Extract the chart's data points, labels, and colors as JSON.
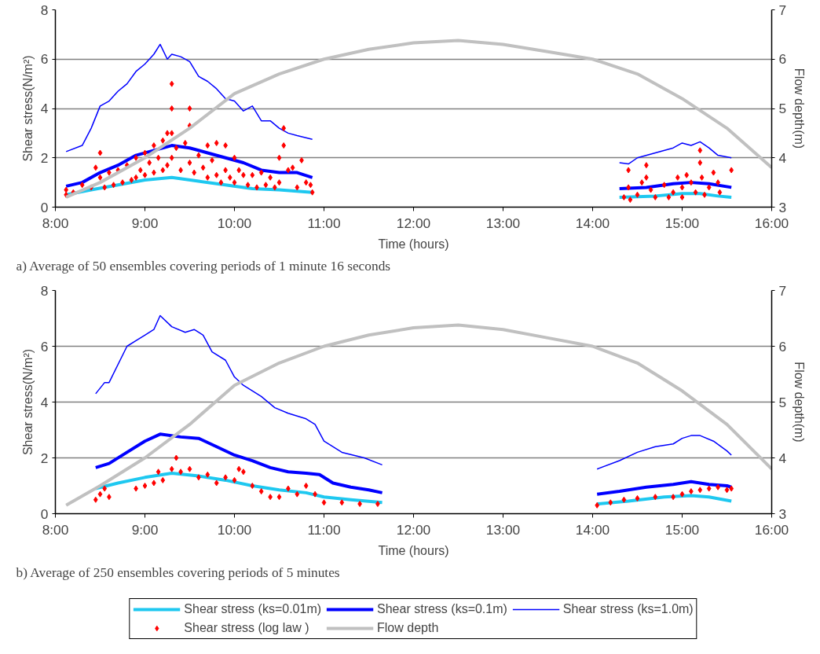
{
  "chart_data": [
    {
      "type": "line",
      "xlabel": "Time (hours)",
      "ylabel": "Shear stress(N/m²)",
      "y2label": "Flow depth(m)",
      "annotations": [
        "a) Average of 50 ensembles covering periods of 1 minute 16 seconds"
      ],
      "xlim": [
        8,
        16
      ],
      "xticks": [
        {
          "value": 8,
          "label": "8:00"
        },
        {
          "value": 9,
          "label": "9:00"
        },
        {
          "value": 10,
          "label": "10:00"
        },
        {
          "value": 11,
          "label": "11:00"
        },
        {
          "value": 12,
          "label": "12:00"
        },
        {
          "value": 13,
          "label": "13:00"
        },
        {
          "value": 14,
          "label": "14:00"
        },
        {
          "value": 15,
          "label": "15:00"
        },
        {
          "value": 16,
          "label": "16:00"
        }
      ],
      "ylim": [
        0,
        8
      ],
      "yticks": [
        0,
        2,
        4,
        6,
        8
      ],
      "y2lim": [
        3,
        7
      ],
      "y2ticks": [
        3,
        4,
        5,
        6,
        7
      ],
      "grid": "y",
      "series": [
        {
          "color": "#1ec8f0",
          "x": [
            8.12,
            8.4,
            8.7,
            9.0,
            9.3,
            9.6,
            9.9,
            10.2,
            10.5,
            10.87,
            12.5,
            14.3,
            14.7,
            15.0,
            15.2,
            15.4,
            15.55
          ],
          "values": [
            0.5,
            0.7,
            0.9,
            1.1,
            1.2,
            1.05,
            0.9,
            0.75,
            0.7,
            0.6,
            null,
            0.4,
            0.45,
            0.55,
            0.55,
            0.45,
            0.4
          ]
        },
        {
          "color": "#0000ff",
          "x": [
            8.12,
            8.3,
            8.5,
            8.7,
            8.9,
            9.1,
            9.3,
            9.5,
            9.7,
            9.9,
            10.1,
            10.3,
            10.5,
            10.7,
            10.87,
            12.5,
            14.3,
            14.6,
            14.9,
            15.1,
            15.3,
            15.55
          ],
          "values": [
            0.85,
            1.0,
            1.4,
            1.7,
            2.1,
            2.3,
            2.5,
            2.4,
            2.2,
            2.0,
            1.8,
            1.5,
            1.4,
            1.4,
            1.2,
            null,
            0.75,
            0.8,
            0.95,
            1.0,
            0.95,
            0.8
          ]
        },
        {
          "color": "#0000ff",
          "x": [
            8.12,
            8.3,
            8.4,
            8.5,
            8.6,
            8.7,
            8.8,
            8.9,
            9.0,
            9.1,
            9.17,
            9.25,
            9.3,
            9.4,
            9.5,
            9.6,
            9.7,
            9.8,
            9.9,
            10.0,
            10.1,
            10.2,
            10.3,
            10.4,
            10.5,
            10.6,
            10.7,
            10.87,
            12.5,
            14.3,
            14.4,
            14.5,
            14.7,
            14.9,
            15.0,
            15.1,
            15.2,
            15.3,
            15.4,
            15.55
          ],
          "values": [
            2.25,
            2.5,
            3.2,
            4.1,
            4.3,
            4.7,
            5.0,
            5.5,
            5.8,
            6.2,
            6.6,
            6.0,
            6.2,
            6.1,
            5.9,
            5.3,
            5.1,
            4.8,
            4.4,
            4.3,
            3.9,
            4.1,
            3.5,
            3.5,
            3.2,
            3.0,
            2.9,
            2.75,
            null,
            1.8,
            1.75,
            2.0,
            2.2,
            2.4,
            2.6,
            2.5,
            2.65,
            2.4,
            2.1,
            2.0
          ]
        },
        {
          "type": "scatter",
          "marker": "diamond",
          "color": "#ff0000",
          "x": [
            8.12,
            8.12,
            8.2,
            8.3,
            8.4,
            8.45,
            8.5,
            8.5,
            8.55,
            8.6,
            8.65,
            8.7,
            8.75,
            8.8,
            8.85,
            8.9,
            8.9,
            8.95,
            9.0,
            9.0,
            9.05,
            9.1,
            9.1,
            9.15,
            9.2,
            9.2,
            9.25,
            9.25,
            9.3,
            9.3,
            9.3,
            9.3,
            9.35,
            9.4,
            9.45,
            9.5,
            9.5,
            9.5,
            9.55,
            9.6,
            9.65,
            9.7,
            9.7,
            9.75,
            9.8,
            9.8,
            9.85,
            9.9,
            9.9,
            9.95,
            10.0,
            10.0,
            10.05,
            10.1,
            10.15,
            10.2,
            10.25,
            10.3,
            10.35,
            10.4,
            10.45,
            10.5,
            10.5,
            10.55,
            10.55,
            10.6,
            10.65,
            10.7,
            10.75,
            10.8,
            10.85,
            10.87,
            14.35,
            14.4,
            14.4,
            14.42,
            14.5,
            14.55,
            14.6,
            14.6,
            14.65,
            14.7,
            14.8,
            14.85,
            14.9,
            14.95,
            15.0,
            15.0,
            15.05,
            15.1,
            15.15,
            15.2,
            15.2,
            15.22,
            15.25,
            15.3,
            15.35,
            15.4,
            15.42,
            15.55
          ],
          "values": [
            0.5,
            0.7,
            0.6,
            0.9,
            0.8,
            1.6,
            2.2,
            1.2,
            0.8,
            1.4,
            0.9,
            1.5,
            1.0,
            1.7,
            1.1,
            2.0,
            1.2,
            1.5,
            2.2,
            1.3,
            1.8,
            2.5,
            1.4,
            2.0,
            2.7,
            1.5,
            3.0,
            1.7,
            5.0,
            4.0,
            3.0,
            2.0,
            2.4,
            1.5,
            2.6,
            1.8,
            4.0,
            3.3,
            1.4,
            2.1,
            1.6,
            2.5,
            1.2,
            1.9,
            2.6,
            1.3,
            1.0,
            2.5,
            1.5,
            1.2,
            2.0,
            1.0,
            1.5,
            1.3,
            0.9,
            1.3,
            0.8,
            1.4,
            0.9,
            1.2,
            0.8,
            2.0,
            1.0,
            2.5,
            3.2,
            1.5,
            1.6,
            0.8,
            1.9,
            1.0,
            0.9,
            0.6,
            0.4,
            1.5,
            0.8,
            0.3,
            0.5,
            1.0,
            1.7,
            1.2,
            0.7,
            0.4,
            0.9,
            0.4,
            0.6,
            1.2,
            0.8,
            0.4,
            1.3,
            1.0,
            0.6,
            2.3,
            1.8,
            1.2,
            0.5,
            0.8,
            1.4,
            1.0,
            0.6,
            1.5
          ]
        },
        {
          "axis": "y2",
          "color": "#c0c0c0",
          "x": [
            8.12,
            8.5,
            9.0,
            9.5,
            10.0,
            10.5,
            11.0,
            11.5,
            12.0,
            12.5,
            13.0,
            13.5,
            14.0,
            14.5,
            15.0,
            15.5,
            16.0
          ],
          "values": [
            3.2,
            3.5,
            4.0,
            4.6,
            5.3,
            5.7,
            6.0,
            6.2,
            6.33,
            6.38,
            6.3,
            6.15,
            6.0,
            5.7,
            5.2,
            4.6,
            3.8
          ]
        }
      ]
    },
    {
      "type": "line",
      "xlabel": "Time (hours)",
      "ylabel": "Shear stress(N/m²)",
      "y2label": "Flow depth(m)",
      "annotations": [
        "b) Average of 250 ensembles covering periods of 5 minutes"
      ],
      "xlim": [
        8,
        16
      ],
      "xticks": [
        {
          "value": 8,
          "label": "8:00"
        },
        {
          "value": 9,
          "label": "9:00"
        },
        {
          "value": 10,
          "label": "10:00"
        },
        {
          "value": 11,
          "label": "11:00"
        },
        {
          "value": 12,
          "label": "12:00"
        },
        {
          "value": 13,
          "label": "13:00"
        },
        {
          "value": 14,
          "label": "14:00"
        },
        {
          "value": 15,
          "label": "15:00"
        },
        {
          "value": 16,
          "label": "16:00"
        }
      ],
      "ylim": [
        0,
        8
      ],
      "yticks": [
        0,
        2,
        4,
        6,
        8
      ],
      "y2lim": [
        3,
        7
      ],
      "y2ticks": [
        3,
        4,
        5,
        6,
        7
      ],
      "grid": "y",
      "legend": "bottom",
      "series": [
        {
          "name": "Shear stress (ks=0.01m)",
          "color": "#1ec8f0",
          "x": [
            8.45,
            8.7,
            9.0,
            9.3,
            9.6,
            9.9,
            10.2,
            10.5,
            10.8,
            11.0,
            11.3,
            11.65,
            12.5,
            14.05,
            14.4,
            14.8,
            15.1,
            15.3,
            15.55
          ],
          "values": [
            0.9,
            1.1,
            1.3,
            1.45,
            1.35,
            1.2,
            1.0,
            0.85,
            0.75,
            0.6,
            0.5,
            0.4,
            null,
            0.35,
            0.45,
            0.6,
            0.65,
            0.6,
            0.45
          ]
        },
        {
          "name": "Shear stress (ks=0.1m)",
          "color": "#0000ff",
          "x": [
            8.45,
            8.6,
            8.8,
            9.0,
            9.17,
            9.4,
            9.6,
            9.8,
            10.0,
            10.2,
            10.4,
            10.6,
            10.8,
            10.95,
            11.1,
            11.3,
            11.5,
            11.65,
            12.5,
            14.05,
            14.3,
            14.6,
            14.9,
            15.1,
            15.3,
            15.5,
            15.55
          ],
          "values": [
            1.65,
            1.8,
            2.2,
            2.6,
            2.85,
            2.75,
            2.7,
            2.4,
            2.1,
            1.9,
            1.65,
            1.5,
            1.45,
            1.4,
            1.1,
            0.95,
            0.85,
            0.75,
            null,
            0.7,
            0.8,
            0.95,
            1.05,
            1.15,
            1.05,
            1.0,
            0.95
          ]
        },
        {
          "name": "Shear stress (ks=1.0m)",
          "color": "#0000ff",
          "x": [
            8.45,
            8.55,
            8.6,
            8.8,
            8.9,
            9.0,
            9.1,
            9.17,
            9.3,
            9.45,
            9.55,
            9.65,
            9.75,
            9.9,
            10.0,
            10.1,
            10.3,
            10.45,
            10.6,
            10.8,
            10.9,
            11.0,
            11.2,
            11.45,
            11.65,
            12.5,
            14.05,
            14.3,
            14.5,
            14.7,
            14.9,
            15.0,
            15.1,
            15.2,
            15.35,
            15.5,
            15.55
          ],
          "values": [
            4.3,
            4.7,
            4.7,
            6.0,
            6.2,
            6.4,
            6.6,
            7.1,
            6.7,
            6.5,
            6.6,
            6.4,
            5.8,
            5.5,
            4.9,
            4.6,
            4.2,
            3.8,
            3.6,
            3.4,
            3.2,
            2.6,
            2.2,
            2.0,
            1.75,
            null,
            1.6,
            1.9,
            2.2,
            2.4,
            2.5,
            2.7,
            2.8,
            2.8,
            2.6,
            2.25,
            2.1
          ]
        },
        {
          "name": "Shear stress (log law )",
          "type": "scatter",
          "marker": "diamond",
          "color": "#ff0000",
          "x": [
            8.45,
            8.5,
            8.55,
            8.6,
            8.9,
            9.0,
            9.1,
            9.15,
            9.2,
            9.3,
            9.35,
            9.4,
            9.5,
            9.6,
            9.7,
            9.8,
            9.9,
            10.0,
            10.05,
            10.1,
            10.2,
            10.3,
            10.4,
            10.5,
            10.6,
            10.7,
            10.8,
            10.9,
            11.0,
            11.2,
            11.4,
            11.6,
            14.05,
            14.2,
            14.35,
            14.5,
            14.7,
            14.9,
            15.0,
            15.1,
            15.2,
            15.3,
            15.4,
            15.5,
            15.55
          ],
          "values": [
            0.5,
            0.7,
            0.9,
            0.6,
            0.9,
            1.0,
            1.1,
            1.5,
            1.2,
            1.6,
            2.0,
            1.5,
            1.6,
            1.3,
            1.4,
            1.1,
            1.3,
            1.2,
            1.6,
            1.5,
            1.0,
            0.8,
            0.6,
            0.6,
            0.9,
            0.7,
            1.0,
            0.7,
            0.4,
            0.4,
            0.35,
            0.35,
            0.3,
            0.4,
            0.5,
            0.55,
            0.6,
            0.6,
            0.7,
            0.8,
            0.85,
            0.9,
            0.95,
            0.85,
            0.9
          ]
        },
        {
          "name": "Flow depth",
          "axis": "y2",
          "color": "#c0c0c0",
          "x": [
            8.12,
            8.5,
            9.0,
            9.5,
            10.0,
            10.5,
            11.0,
            11.5,
            12.0,
            12.5,
            13.0,
            13.5,
            14.0,
            14.5,
            15.0,
            15.5,
            16.0
          ],
          "values": [
            3.15,
            3.5,
            4.0,
            4.6,
            5.3,
            5.7,
            6.0,
            6.2,
            6.33,
            6.38,
            6.3,
            6.15,
            6.0,
            5.7,
            5.2,
            4.6,
            3.8
          ]
        }
      ]
    }
  ]
}
